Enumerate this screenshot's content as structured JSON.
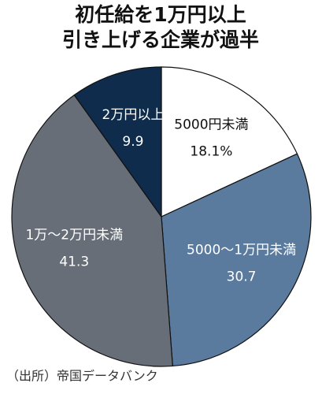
{
  "chart_data": {
    "type": "pie",
    "title": [
      "初任給を1万円以上",
      "引き上げる企業が過半"
    ],
    "categories": [
      "5000円未満",
      "5000～1万円未満",
      "1万～2万円未満",
      "2万円以上"
    ],
    "values": [
      18.1,
      30.7,
      41.3,
      9.9
    ],
    "value_labels": [
      "18.1%",
      "30.7",
      "41.3",
      "9.9"
    ],
    "colors": [
      "#ffffff",
      "#5a7a9e",
      "#676e78",
      "#0f2c4c"
    ],
    "source": "（出所）帝国データバンク"
  }
}
